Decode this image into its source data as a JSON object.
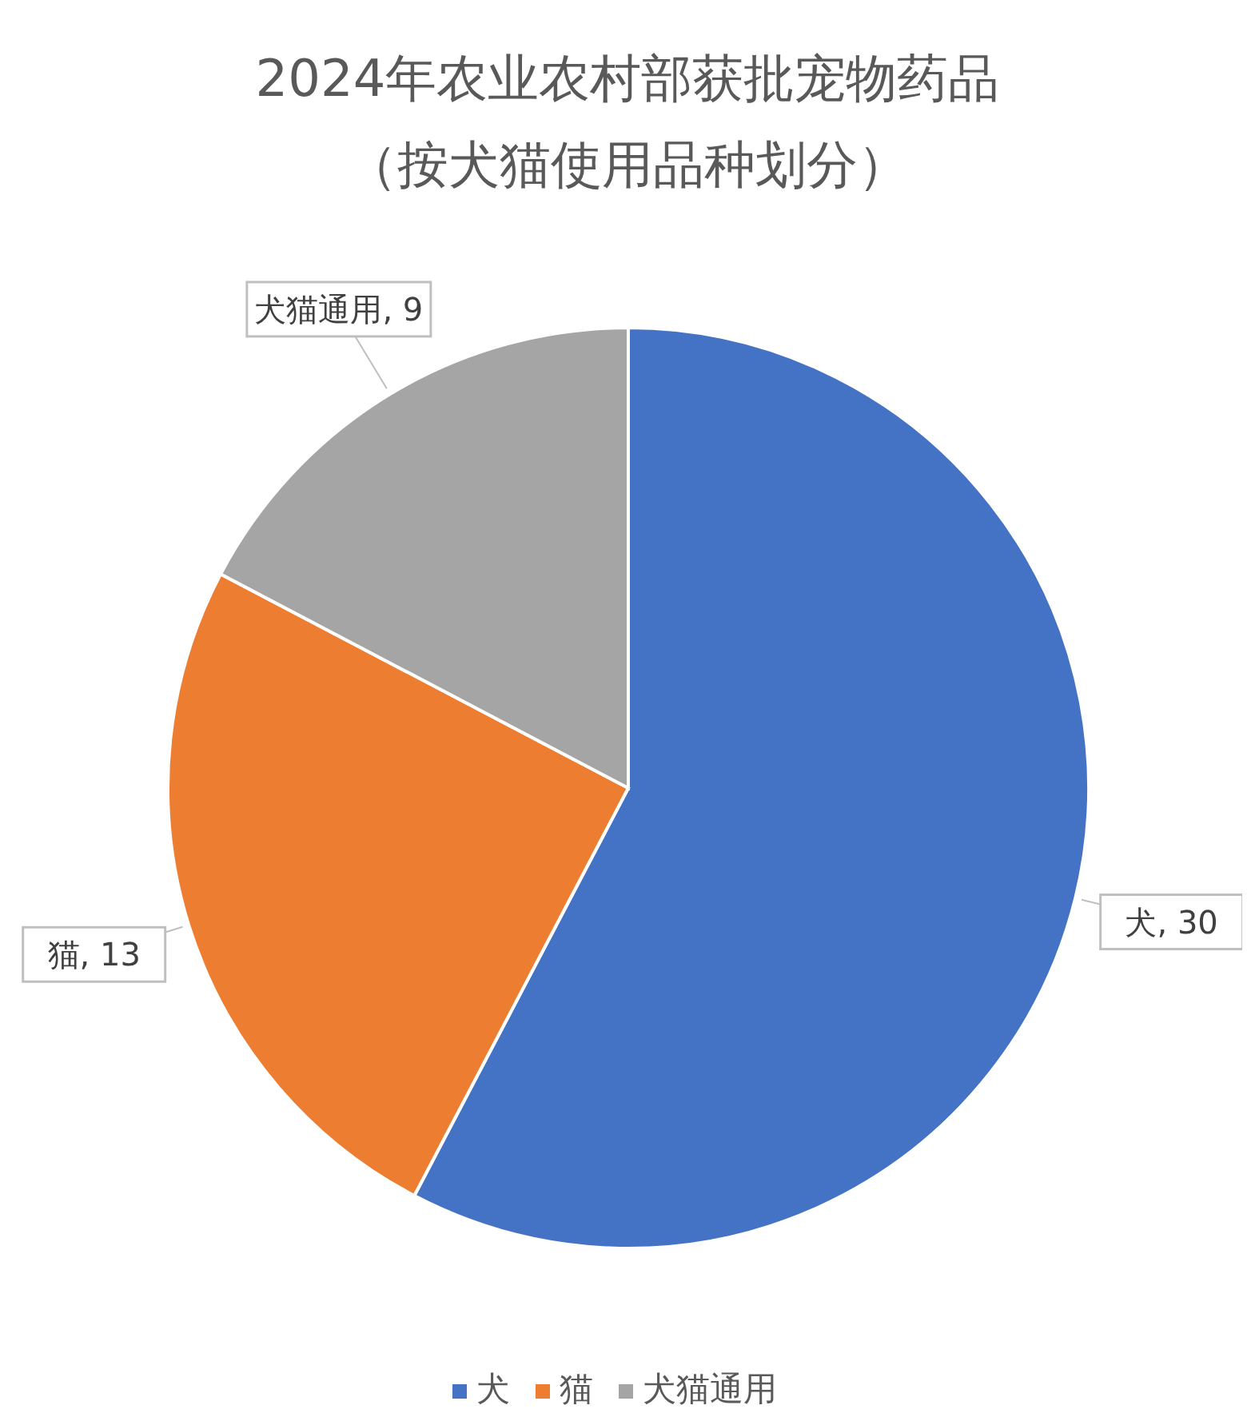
{
  "chart_data": {
    "type": "pie",
    "title": "2024年农业农村部获批宠物药品（按犬猫使用品种划分）",
    "categories": [
      "犬",
      "猫",
      "犬猫通用"
    ],
    "values": [
      30,
      13,
      9
    ],
    "value_labels": [
      "犬, 30",
      "猫, 13",
      "犬猫通用, 9"
    ],
    "colors": [
      "#4472c4",
      "#ed7d31",
      "#a5a5a5"
    ],
    "legend": "bottom"
  }
}
